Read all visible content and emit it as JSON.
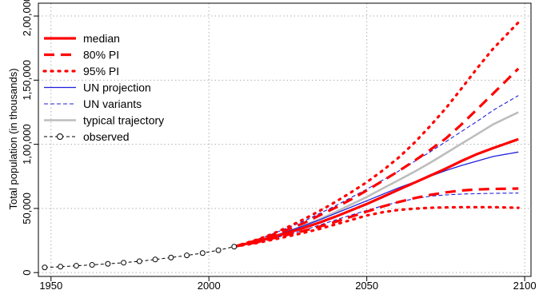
{
  "chart_data": {
    "type": "line",
    "xlabel": "",
    "ylabel": "Total population (in thousands)",
    "xlim": [
      1946,
      2102
    ],
    "ylim": [
      -3000,
      210000
    ],
    "x_ticks": [
      1950,
      2000,
      2050,
      2100
    ],
    "y_ticks": [
      {
        "value": 0,
        "label": "0"
      },
      {
        "value": 50000,
        "label": "50,000"
      },
      {
        "value": 100000,
        "label": "1,00,000"
      },
      {
        "value": 150000,
        "label": "1,50,000"
      },
      {
        "value": 200000,
        "label": "2,00,000"
      }
    ],
    "grid": true,
    "legend_position": "top-left",
    "series": [
      {
        "name": "median",
        "style": "median",
        "x": [
          2008,
          2015,
          2020,
          2025,
          2030,
          2035,
          2040,
          2045,
          2050,
          2055,
          2060,
          2065,
          2070,
          2075,
          2080,
          2085,
          2090,
          2098
        ],
        "y": [
          20200,
          24300,
          27600,
          31000,
          34800,
          39000,
          43500,
          48500,
          53500,
          59000,
          64500,
          70000,
          75500,
          81000,
          87000,
          92500,
          97000,
          104000
        ]
      },
      {
        "name": "80% PI",
        "style": "pi80",
        "x": [
          2008,
          2015,
          2020,
          2025,
          2030,
          2035,
          2040,
          2045,
          2050,
          2055,
          2060,
          2065,
          2070,
          2075,
          2080,
          2085,
          2090,
          2098
        ],
        "y": [
          20200,
          25000,
          29000,
          33500,
          38500,
          44500,
          50500,
          57000,
          64000,
          71500,
          79000,
          87000,
          95500,
          104500,
          115500,
          127500,
          139500,
          159000
        ]
      },
      {
        "name": "",
        "style": "pi80",
        "x": [
          2008,
          2015,
          2020,
          2025,
          2030,
          2035,
          2040,
          2045,
          2050,
          2055,
          2060,
          2065,
          2070,
          2075,
          2080,
          2085,
          2090,
          2098
        ],
        "y": [
          20200,
          23500,
          26500,
          29500,
          32500,
          35800,
          39500,
          43500,
          47500,
          51500,
          55000,
          58000,
          60500,
          62500,
          64000,
          64800,
          65200,
          65500
        ]
      },
      {
        "name": "95% PI",
        "style": "pi95",
        "x": [
          2008,
          2015,
          2020,
          2025,
          2030,
          2035,
          2040,
          2045,
          2050,
          2055,
          2060,
          2065,
          2070,
          2075,
          2080,
          2085,
          2090,
          2098
        ],
        "y": [
          20200,
          25500,
          30000,
          35500,
          41500,
          48000,
          55000,
          62500,
          70500,
          79500,
          89500,
          101000,
          114000,
          128000,
          143500,
          159500,
          174500,
          195000
        ]
      },
      {
        "name": "",
        "style": "pi95",
        "x": [
          2008,
          2015,
          2020,
          2025,
          2030,
          2035,
          2040,
          2045,
          2050,
          2055,
          2060,
          2065,
          2070,
          2075,
          2080,
          2085,
          2090,
          2098
        ],
        "y": [
          20200,
          23000,
          25500,
          28200,
          31000,
          34000,
          37500,
          41000,
          44500,
          47000,
          48800,
          49800,
          50500,
          50800,
          51000,
          51000,
          51000,
          50500
        ]
      },
      {
        "name": "UN projection",
        "style": "un",
        "x": [
          2008,
          2015,
          2020,
          2025,
          2030,
          2035,
          2040,
          2045,
          2050,
          2055,
          2060,
          2065,
          2070,
          2075,
          2080,
          2085,
          2090,
          2098
        ],
        "y": [
          20200,
          24500,
          28000,
          32000,
          36500,
          41000,
          46000,
          51000,
          56000,
          61000,
          66000,
          70500,
          75000,
          79500,
          83500,
          87000,
          90500,
          94000
        ]
      },
      {
        "name": "UN variants",
        "style": "unvar",
        "x": [
          2008,
          2015,
          2020,
          2025,
          2030,
          2035,
          2040,
          2045,
          2050,
          2055,
          2060,
          2065,
          2070,
          2075,
          2080,
          2085,
          2090,
          2098
        ],
        "y": [
          20200,
          25500,
          30000,
          35000,
          40000,
          46000,
          52000,
          58500,
          65000,
          72000,
          79000,
          86500,
          94000,
          102000,
          110000,
          118000,
          126500,
          138000
        ]
      },
      {
        "name": "",
        "style": "unvar",
        "x": [
          2008,
          2015,
          2020,
          2025,
          2030,
          2035,
          2040,
          2045,
          2050,
          2055,
          2060,
          2065,
          2070,
          2075,
          2080,
          2085,
          2090,
          2098
        ],
        "y": [
          20200,
          23500,
          26500,
          29500,
          33000,
          37000,
          41000,
          44800,
          48500,
          52000,
          55000,
          57500,
          59500,
          60500,
          61200,
          61500,
          61800,
          62000
        ]
      },
      {
        "name": "typical trajectory",
        "style": "typical",
        "x": [
          2008,
          2015,
          2020,
          2025,
          2030,
          2035,
          2040,
          2045,
          2050,
          2055,
          2060,
          2065,
          2070,
          2075,
          2080,
          2085,
          2090,
          2098
        ],
        "y": [
          20200,
          24500,
          28000,
          32000,
          36500,
          41500,
          47000,
          53000,
          59000,
          65500,
          72000,
          78500,
          85500,
          93000,
          100500,
          108000,
          115500,
          125000
        ]
      },
      {
        "name": "observed",
        "style": "observed",
        "x": [
          1948,
          1953,
          1958,
          1963,
          1968,
          1973,
          1978,
          1983,
          1988,
          1993,
          1998,
          2003,
          2008
        ],
        "y": [
          4000,
          4600,
          5300,
          6000,
          6800,
          7700,
          8800,
          10200,
          11700,
          13400,
          15200,
          17400,
          20200
        ]
      }
    ]
  },
  "colors": {
    "red": "#ff0000",
    "blue": "#1f1fdd",
    "gray": "#bdbdbd",
    "grid": "#b0b0b0"
  }
}
